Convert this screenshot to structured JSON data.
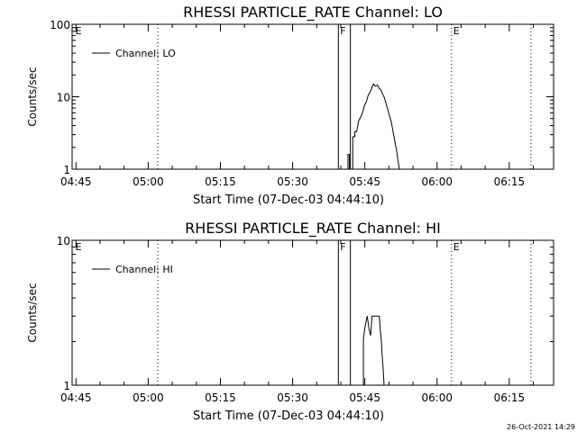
{
  "footer_timestamp": "26-Oct-2021 14:29",
  "chart_data": [
    {
      "type": "line",
      "title": "RHESSI PARTICLE_RATE Channel: LO",
      "xlabel": "Start Time (07-Dec-03 04:44:10)",
      "ylabel": "Counts/sec",
      "yscale": "log",
      "ylim": [
        1,
        100
      ],
      "y_ticks": [
        "1",
        "10",
        "100"
      ],
      "x_unit": "minutes since 04:44:10",
      "xlim": [
        0,
        100
      ],
      "x_ticks": [
        {
          "label": "04:45",
          "x": 0.8
        },
        {
          "label": "05:00",
          "x": 15.8
        },
        {
          "label": "05:15",
          "x": 30.8
        },
        {
          "label": "05:30",
          "x": 45.8
        },
        {
          "label": "05:45",
          "x": 60.8
        },
        {
          "label": "06:00",
          "x": 75.8
        },
        {
          "label": "06:15",
          "x": 90.8
        }
      ],
      "legend": {
        "label": "Channel: LO",
        "placement": "top-left"
      },
      "markers": [
        {
          "label": "E",
          "x": 0.3
        },
        {
          "label": "F",
          "x": 55.3
        },
        {
          "label": "E",
          "x": 78.8
        }
      ],
      "dotted_lines": [
        17.8,
        78.8,
        95.3
      ],
      "solid_lines": [
        55.3,
        57.8
      ],
      "series": [
        {
          "name": "Channel: LO",
          "points": [
            [
              57.3,
              1.0
            ],
            [
              57.3,
              1.6
            ],
            [
              57.6,
              1.6
            ],
            [
              57.6,
              1.0
            ],
            [
              58.3,
              1.0
            ],
            [
              58.3,
              2.8
            ],
            [
              58.7,
              2.8
            ],
            [
              58.7,
              3.3
            ],
            [
              59.1,
              3.3
            ],
            [
              59.5,
              4.6
            ],
            [
              59.9,
              5.2
            ],
            [
              60.3,
              6.0
            ],
            [
              60.7,
              7.5
            ],
            [
              61.1,
              8.5
            ],
            [
              61.5,
              10.5
            ],
            [
              61.9,
              11.5
            ],
            [
              62.3,
              13.5
            ],
            [
              62.6,
              15.0
            ],
            [
              63.0,
              14.0
            ],
            [
              63.4,
              14.5
            ],
            [
              63.8,
              13.0
            ],
            [
              64.1,
              12.5
            ],
            [
              64.5,
              11.0
            ],
            [
              64.9,
              9.5
            ],
            [
              65.2,
              8.0
            ],
            [
              65.6,
              6.5
            ],
            [
              65.9,
              5.5
            ],
            [
              66.3,
              4.5
            ],
            [
              66.6,
              3.5
            ],
            [
              67.0,
              2.5
            ],
            [
              67.4,
              1.8
            ],
            [
              67.7,
              1.3
            ],
            [
              68.0,
              1.0
            ]
          ]
        }
      ]
    },
    {
      "type": "line",
      "title": "RHESSI PARTICLE_RATE Channel: HI",
      "xlabel": "Start Time (07-Dec-03 04:44:10)",
      "ylabel": "Counts/sec",
      "yscale": "log",
      "ylim": [
        1,
        10
      ],
      "y_ticks": [
        "1",
        "10"
      ],
      "x_unit": "minutes since 04:44:10",
      "xlim": [
        0,
        100
      ],
      "x_ticks": [
        {
          "label": "04:45",
          "x": 0.8
        },
        {
          "label": "05:00",
          "x": 15.8
        },
        {
          "label": "05:15",
          "x": 30.8
        },
        {
          "label": "05:30",
          "x": 45.8
        },
        {
          "label": "05:45",
          "x": 60.8
        },
        {
          "label": "06:00",
          "x": 75.8
        },
        {
          "label": "06:15",
          "x": 90.8
        }
      ],
      "legend": {
        "label": "Channel: HI",
        "placement": "top-left"
      },
      "markers": [
        {
          "label": "E",
          "x": 0.3
        },
        {
          "label": "F",
          "x": 55.3
        },
        {
          "label": "E",
          "x": 78.8
        }
      ],
      "dotted_lines": [
        17.8,
        78.8,
        95.3
      ],
      "solid_lines": [
        55.3,
        57.8
      ],
      "series": [
        {
          "name": "Channel: HI",
          "points": [
            [
              60.5,
              1.0
            ],
            [
              60.5,
              2.1
            ],
            [
              60.9,
              2.6
            ],
            [
              61.3,
              3.0
            ],
            [
              61.7,
              2.4
            ],
            [
              62.0,
              2.2
            ],
            [
              62.3,
              3.0
            ],
            [
              63.8,
              3.0
            ],
            [
              64.0,
              2.4
            ],
            [
              64.2,
              2.1
            ],
            [
              64.4,
              1.6
            ],
            [
              64.6,
              1.3
            ],
            [
              64.8,
              1.0
            ]
          ]
        }
      ]
    }
  ]
}
